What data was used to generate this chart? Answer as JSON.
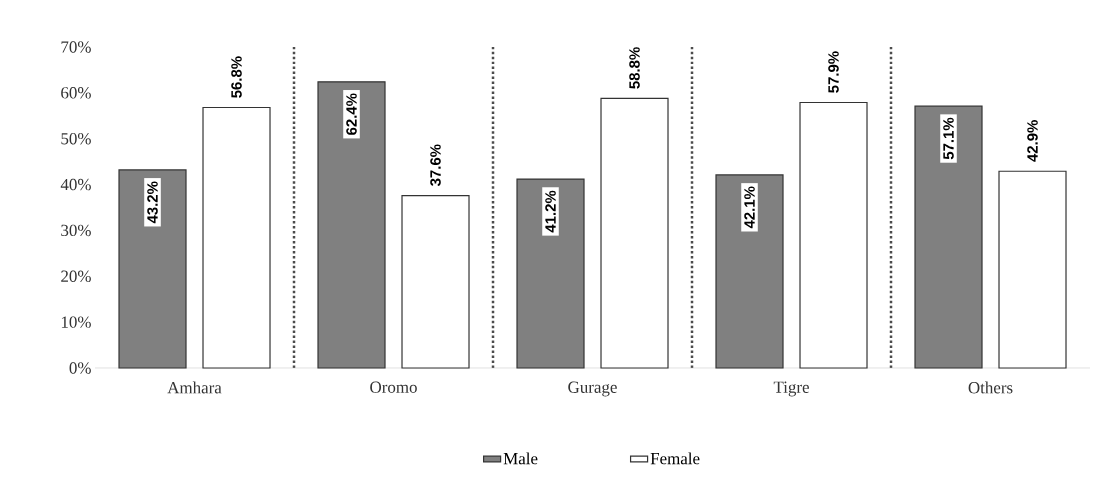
{
  "chart_data": {
    "type": "bar",
    "categories": [
      "Amhara",
      "Oromo",
      "Gurage",
      "Tigre",
      "Others"
    ],
    "series": [
      {
        "name": "Male",
        "color": "#808080",
        "values": [
          43.2,
          62.4,
          41.2,
          42.1,
          57.1
        ],
        "value_labels": [
          "43.2%",
          "62.4%",
          "41.2%",
          "42.1%",
          "57.1%"
        ]
      },
      {
        "name": "Female",
        "color": "#ffffff",
        "values": [
          56.8,
          37.6,
          58.8,
          57.9,
          42.9
        ],
        "value_labels": [
          "56.8%",
          "37.6%",
          "58.8%",
          "57.9%",
          "42.9%"
        ]
      }
    ],
    "ylim": [
      0,
      70
    ],
    "yticks": [
      {
        "value": 0,
        "label": "0%"
      },
      {
        "value": 10,
        "label": "10%"
      },
      {
        "value": 20,
        "label": "20%"
      },
      {
        "value": 30,
        "label": "30%"
      },
      {
        "value": 40,
        "label": "40%"
      },
      {
        "value": 50,
        "label": "50%"
      },
      {
        "value": 60,
        "label": "60%"
      },
      {
        "value": 70,
        "label": "70%"
      }
    ],
    "grid": "x",
    "legend": "bottom"
  }
}
